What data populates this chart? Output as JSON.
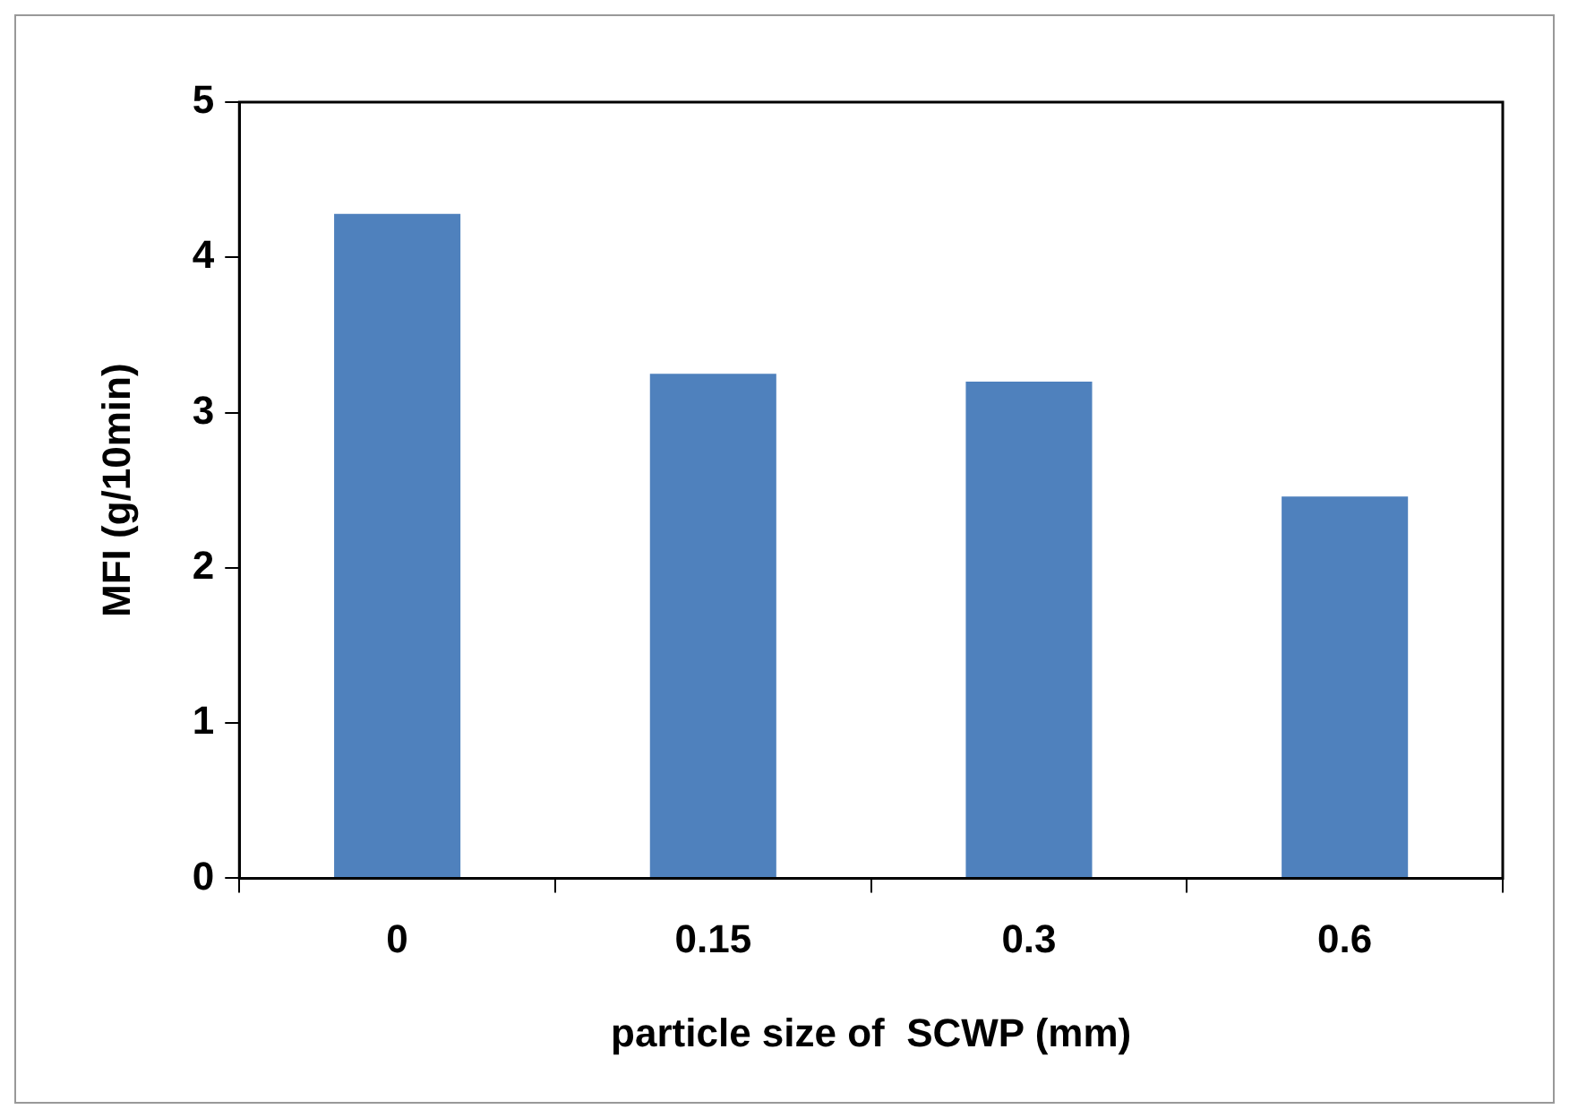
{
  "chart_data": {
    "type": "bar",
    "xlabel": "particle size of  SCWP (mm)",
    "ylabel": "MFI (g/10min)",
    "categories": [
      "0",
      "0.15",
      "0.3",
      "0.6"
    ],
    "values": [
      4.28,
      3.25,
      3.2,
      2.46
    ],
    "color": "#4f81bd",
    "ylim": [
      0,
      5
    ],
    "yticks": [
      0,
      1,
      2,
      3,
      4,
      5
    ],
    "grid": false,
    "legend": false
  }
}
